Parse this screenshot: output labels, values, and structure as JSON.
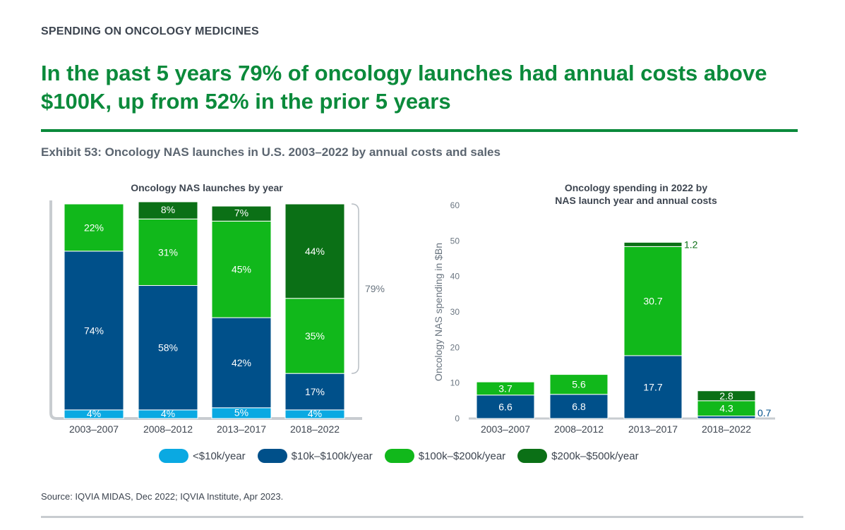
{
  "eyebrow": "SPENDING ON ONCOLOGY MEDICINES",
  "headline": "In the past 5 years 79% of oncology launches had annual costs above $100K, up from 52% in the prior 5 years",
  "exhibit_title": "Exhibit 53: Oncology NAS launches in U.S. 2003–2022 by annual costs and sales",
  "source": "Source: IQVIA MIDAS, Dec 2022; IQVIA Institute, Apr 2023.",
  "legend": [
    {
      "label": "<$10k/year",
      "color": "#0aa9e2"
    },
    {
      "label": "$10k–$100k/year",
      "color": "#00508a"
    },
    {
      "label": "$100k–$200k/year",
      "color": "#11b81b"
    },
    {
      "label": "$200k–$500k/year",
      "color": "#0b7016"
    }
  ],
  "chart_data": [
    {
      "type": "bar",
      "stacked": true,
      "title": "Oncology NAS launches by year",
      "categories": [
        "2003–2007",
        "2008–2012",
        "2013–2017",
        "2018–2022"
      ],
      "series": [
        {
          "name": "<$10k/year",
          "values": [
            4,
            4,
            5,
            4
          ],
          "labels": [
            "4%",
            "4%",
            "5%",
            "4%"
          ]
        },
        {
          "name": "$10k–$100k/year",
          "values": [
            74,
            58,
            42,
            17
          ],
          "labels": [
            "74%",
            "58%",
            "42%",
            "17%"
          ]
        },
        {
          "name": "$100k–$200k/year",
          "values": [
            22,
            31,
            45,
            35
          ],
          "labels": [
            "22%",
            "31%",
            "45%",
            "35%"
          ]
        },
        {
          "name": "$200k–$500k/year",
          "values": [
            0,
            8,
            7,
            44
          ],
          "labels": [
            "",
            "8%",
            "7%",
            "44%"
          ]
        }
      ],
      "annotation": "79%",
      "ylim": [
        0,
        100
      ]
    },
    {
      "type": "bar",
      "stacked": true,
      "title": "Oncology spending in 2022 by NAS launch year and annual costs",
      "ylabel": "Oncology NAS spending in $Bn",
      "ylim": [
        0,
        60
      ],
      "yticks": [
        0,
        10,
        20,
        30,
        40,
        50,
        60
      ],
      "categories": [
        "2003–2007",
        "2008–2012",
        "2013–2017",
        "2018–2022"
      ],
      "series": [
        {
          "name": "$10k–$100k/year",
          "values": [
            6.6,
            6.8,
            17.7,
            0.7
          ],
          "labels": [
            "6.6",
            "6.8",
            "17.7",
            "0.7"
          ]
        },
        {
          "name": "$100k–$200k/year",
          "values": [
            3.7,
            5.6,
            30.7,
            4.3
          ],
          "labels": [
            "3.7",
            "5.6",
            "30.7",
            "4.3"
          ]
        },
        {
          "name": "$200k–$500k/year",
          "values": [
            0,
            0,
            1.2,
            2.8
          ],
          "labels": [
            "",
            "",
            "1.2",
            "2.8"
          ]
        }
      ]
    }
  ]
}
